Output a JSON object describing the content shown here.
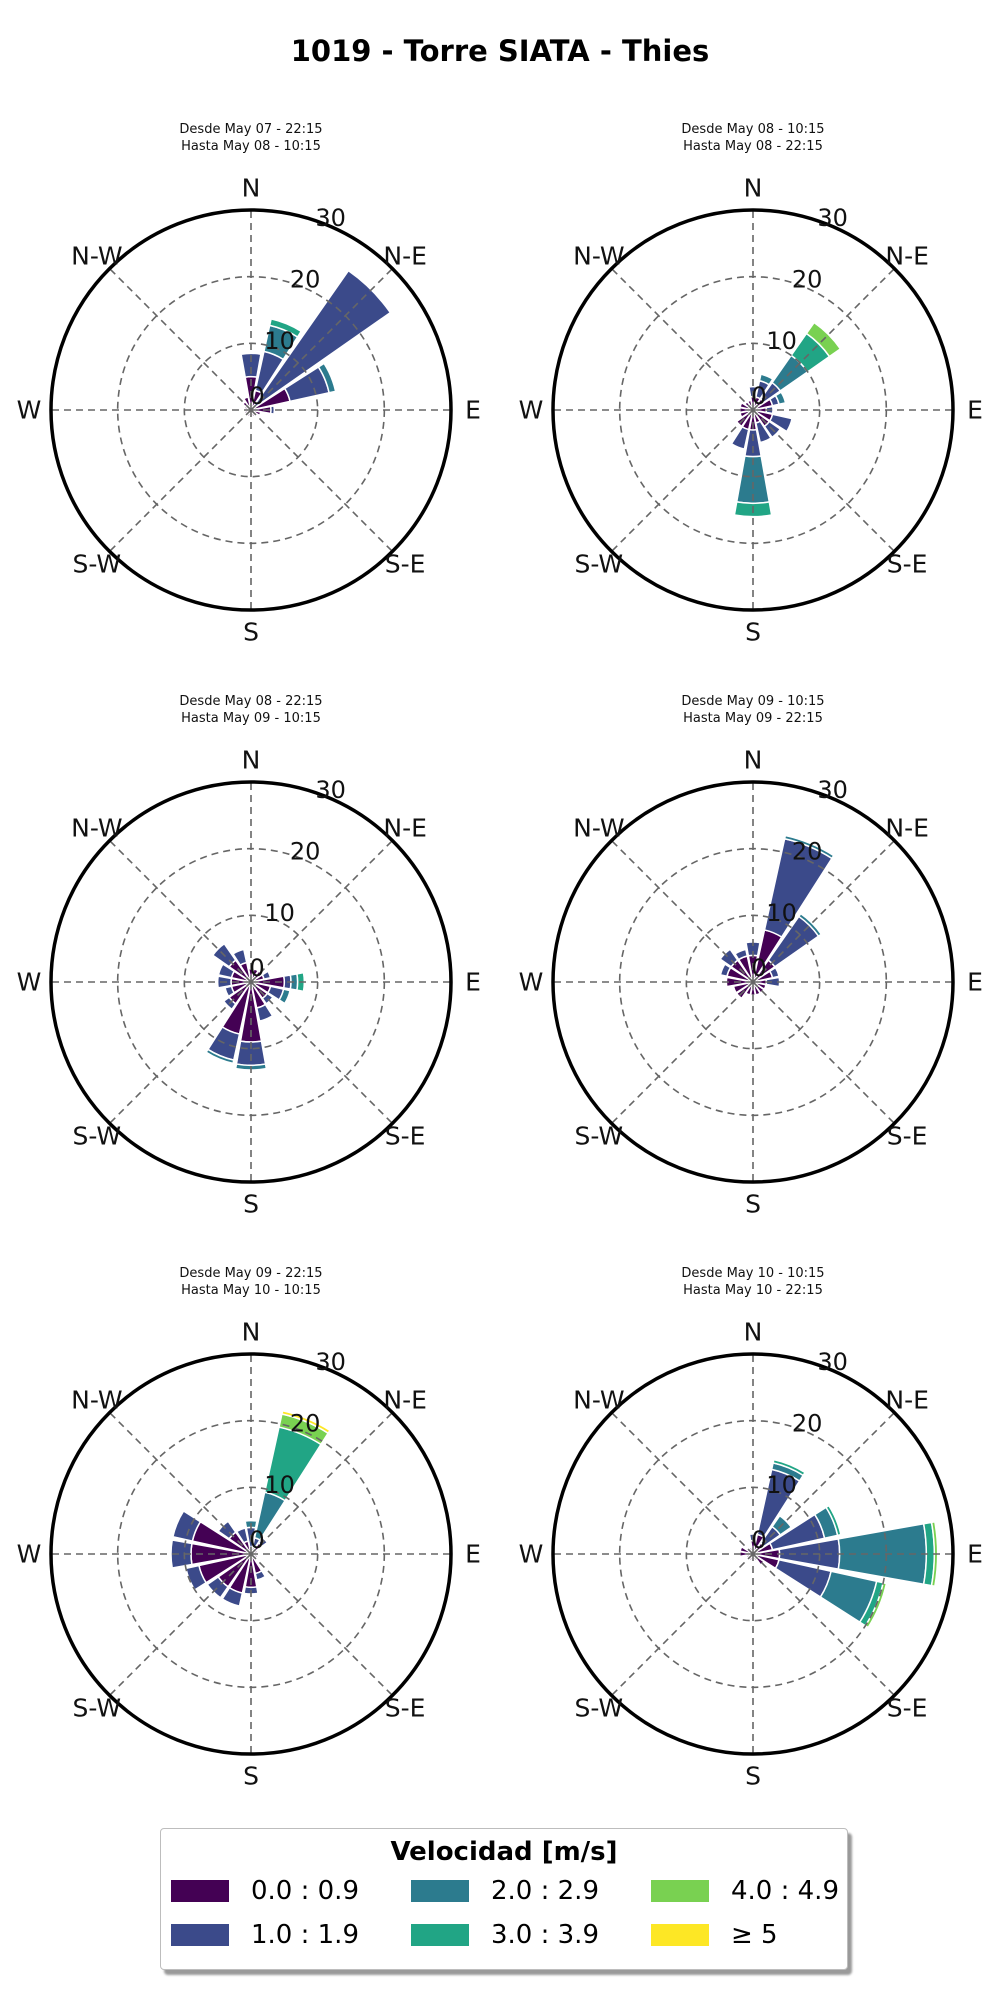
{
  "title": "1019 - Torre SIATA - Thies",
  "legend": {
    "title": "Velocidad [m/s]",
    "bins": [
      {
        "label": "0.0 : 0.9",
        "color": "#440154"
      },
      {
        "label": "1.0 : 1.9",
        "color": "#3b4a8a"
      },
      {
        "label": "2.0 : 2.9",
        "color": "#2c7b8e"
      },
      {
        "label": "3.0 : 3.9",
        "color": "#21a585"
      },
      {
        "label": "4.0 : 4.9",
        "color": "#79d151"
      },
      {
        "label": "≥ 5",
        "color": "#fde725"
      }
    ]
  },
  "chart_data": {
    "type": "windrose",
    "directions": [
      "N",
      "N-E",
      "E",
      "S-E",
      "S",
      "S-W",
      "W",
      "N-W"
    ],
    "rings": [
      "0",
      "10",
      "20",
      "30"
    ],
    "radial_max": 30,
    "sector_width_deg": 22.5,
    "panels": [
      {
        "subtitle": [
          "Desde May 07 - 22:15",
          "Hasta May 08 - 10:15"
        ],
        "sectors": [
          {
            "dir": 0,
            "values": [
              5,
              3.5
            ]
          },
          {
            "dir": 22.5,
            "values": [
              3,
              6,
              4,
              1
            ]
          },
          {
            "dir": 45,
            "values": [
              0.5,
              25
            ]
          },
          {
            "dir": 67.5,
            "values": [
              6,
              6,
              1
            ]
          },
          {
            "dir": 90,
            "values": [
              3,
              0.5
            ]
          },
          {
            "dir": 112.5,
            "values": [
              1.5
            ]
          },
          {
            "dir": 135,
            "values": [
              1
            ]
          },
          {
            "dir": 157.5,
            "values": [
              1
            ]
          },
          {
            "dir": 180,
            "values": [
              1
            ]
          },
          {
            "dir": 202.5,
            "values": [
              1
            ]
          },
          {
            "dir": 225,
            "values": [
              1
            ]
          },
          {
            "dir": 247.5,
            "values": [
              1
            ]
          },
          {
            "dir": 270,
            "values": [
              1
            ]
          },
          {
            "dir": 292.5,
            "values": [
              1
            ]
          },
          {
            "dir": 315,
            "values": [
              1.5
            ]
          },
          {
            "dir": 337.5,
            "values": [
              2
            ]
          }
        ]
      },
      {
        "subtitle": [
          "Desde May 08 - 10:15",
          "Hasta May 08 - 22:15"
        ],
        "sectors": [
          {
            "dir": 0,
            "values": [
              2,
              1.5
            ]
          },
          {
            "dir": 22.5,
            "values": [
              2,
              2.5,
              1
            ]
          },
          {
            "dir": 45,
            "values": [
              2,
              3,
              5,
              4,
              2
            ]
          },
          {
            "dir": 67.5,
            "values": [
              3,
              1,
              1
            ]
          },
          {
            "dir": 90,
            "values": [
              2,
              1
            ]
          },
          {
            "dir": 112.5,
            "values": [
              3,
              3
            ]
          },
          {
            "dir": 135,
            "values": [
              3,
              2
            ]
          },
          {
            "dir": 157.5,
            "values": [
              2,
              3
            ]
          },
          {
            "dir": 180,
            "values": [
              3,
              4,
              7,
              2
            ]
          },
          {
            "dir": 202.5,
            "values": [
              3,
              3
            ]
          },
          {
            "dir": 225,
            "values": [
              3
            ]
          },
          {
            "dir": 247.5,
            "values": [
              2
            ]
          },
          {
            "dir": 270,
            "values": [
              2
            ]
          },
          {
            "dir": 292.5,
            "values": [
              2
            ]
          },
          {
            "dir": 315,
            "values": [
              1.5
            ]
          },
          {
            "dir": 337.5,
            "values": [
              1.5
            ]
          }
        ]
      },
      {
        "subtitle": [
          "Desde May 08 - 22:15",
          "Hasta May 09 - 10:15"
        ],
        "sectors": [
          {
            "dir": 0,
            "values": [
              2
            ]
          },
          {
            "dir": 22.5,
            "values": [
              2
            ]
          },
          {
            "dir": 45,
            "values": [
              2
            ]
          },
          {
            "dir": 67.5,
            "values": [
              2,
              1
            ]
          },
          {
            "dir": 90,
            "values": [
              5,
              1,
              1,
              1
            ]
          },
          {
            "dir": 112.5,
            "values": [
              3,
              2,
              1
            ]
          },
          {
            "dir": 135,
            "values": [
              3,
              1
            ]
          },
          {
            "dir": 157.5,
            "values": [
              4,
              2
            ]
          },
          {
            "dir": 180,
            "values": [
              9,
              3.5,
              0.7
            ]
          },
          {
            "dir": 202.5,
            "values": [
              8,
              4,
              0.5
            ]
          },
          {
            "dir": 225,
            "values": [
              4,
              1
            ]
          },
          {
            "dir": 247.5,
            "values": [
              3,
              1
            ]
          },
          {
            "dir": 270,
            "values": [
              3,
              2
            ]
          },
          {
            "dir": 292.5,
            "values": [
              3,
              2
            ]
          },
          {
            "dir": 315,
            "values": [
              4,
              3
            ]
          },
          {
            "dir": 337.5,
            "values": [
              3,
              2
            ]
          }
        ]
      },
      {
        "subtitle": [
          "Desde May 09 - 10:15",
          "Hasta May 09 - 22:15"
        ],
        "sectors": [
          {
            "dir": 0,
            "values": [
              4,
              2
            ]
          },
          {
            "dir": 22.5,
            "values": [
              8,
              14,
              0.5
            ]
          },
          {
            "dir": 45,
            "values": [
              4,
              8,
              0.5
            ]
          },
          {
            "dir": 67.5,
            "values": [
              3,
              1
            ]
          },
          {
            "dir": 90,
            "values": [
              2,
              2
            ]
          },
          {
            "dir": 112.5,
            "values": [
              2
            ]
          },
          {
            "dir": 135,
            "values": [
              2
            ]
          },
          {
            "dir": 157.5,
            "values": [
              2
            ]
          },
          {
            "dir": 180,
            "values": [
              2
            ]
          },
          {
            "dir": 202.5,
            "values": [
              2
            ]
          },
          {
            "dir": 225,
            "values": [
              3
            ]
          },
          {
            "dir": 247.5,
            "values": [
              3
            ]
          },
          {
            "dir": 270,
            "values": [
              4
            ]
          },
          {
            "dir": 292.5,
            "values": [
              4,
              1
            ]
          },
          {
            "dir": 315,
            "values": [
              4,
              2
            ]
          },
          {
            "dir": 337.5,
            "values": [
              4,
              1
            ]
          }
        ]
      },
      {
        "subtitle": [
          "Desde May 09 - 22:15",
          "Hasta May 10 - 10:15"
        ],
        "sectors": [
          {
            "dir": 0,
            "values": [
              1,
              3,
              1
            ]
          },
          {
            "dir": 22.5,
            "values": [
              1,
              1.5,
              7,
              10,
              2,
              0.5
            ]
          },
          {
            "dir": 45,
            "values": [
              2,
              1
            ]
          },
          {
            "dir": 67.5,
            "values": [
              1
            ]
          },
          {
            "dir": 90,
            "values": [
              1
            ]
          },
          {
            "dir": 112.5,
            "values": [
              1
            ]
          },
          {
            "dir": 135,
            "values": [
              1
            ]
          },
          {
            "dir": 157.5,
            "values": [
              3,
              1
            ]
          },
          {
            "dir": 180,
            "values": [
              5,
              1
            ]
          },
          {
            "dir": 202.5,
            "values": [
              6,
              2
            ]
          },
          {
            "dir": 225,
            "values": [
              6,
              2
            ]
          },
          {
            "dir": 247.5,
            "values": [
              8,
              2
            ]
          },
          {
            "dir": 270,
            "values": [
              9,
              3
            ]
          },
          {
            "dir": 292.5,
            "values": [
              9,
              3
            ]
          },
          {
            "dir": 315,
            "values": [
              4,
              2
            ]
          },
          {
            "dir": 337.5,
            "values": [
              2,
              2
            ]
          }
        ]
      },
      {
        "subtitle": [
          "Desde May 10 - 10:15",
          "Hasta May 10 - 22:15"
        ],
        "sectors": [
          {
            "dir": 0,
            "values": [
              2,
              1
            ]
          },
          {
            "dir": 22.5,
            "values": [
              3,
              10,
              1,
              0.5
            ]
          },
          {
            "dir": 45,
            "values": [
              2,
              3,
              2
            ]
          },
          {
            "dir": 67.5,
            "values": [
              3,
              8,
              2,
              0.5
            ]
          },
          {
            "dir": 90,
            "values": [
              4,
              9,
              13,
              1.2,
              0.5
            ]
          },
          {
            "dir": 112.5,
            "values": [
              4,
              8,
              7,
              1,
              0.5
            ]
          },
          {
            "dir": 135,
            "values": [
              2
            ]
          },
          {
            "dir": 157.5,
            "values": [
              1
            ]
          },
          {
            "dir": 180,
            "values": [
              1
            ]
          },
          {
            "dir": 202.5,
            "values": [
              1
            ]
          },
          {
            "dir": 225,
            "values": [
              1
            ]
          },
          {
            "dir": 247.5,
            "values": [
              1
            ]
          },
          {
            "dir": 270,
            "values": [
              2
            ]
          },
          {
            "dir": 292.5,
            "values": [
              2
            ]
          },
          {
            "dir": 315,
            "values": [
              1
            ]
          },
          {
            "dir": 337.5,
            "values": [
              1
            ]
          }
        ]
      }
    ]
  }
}
